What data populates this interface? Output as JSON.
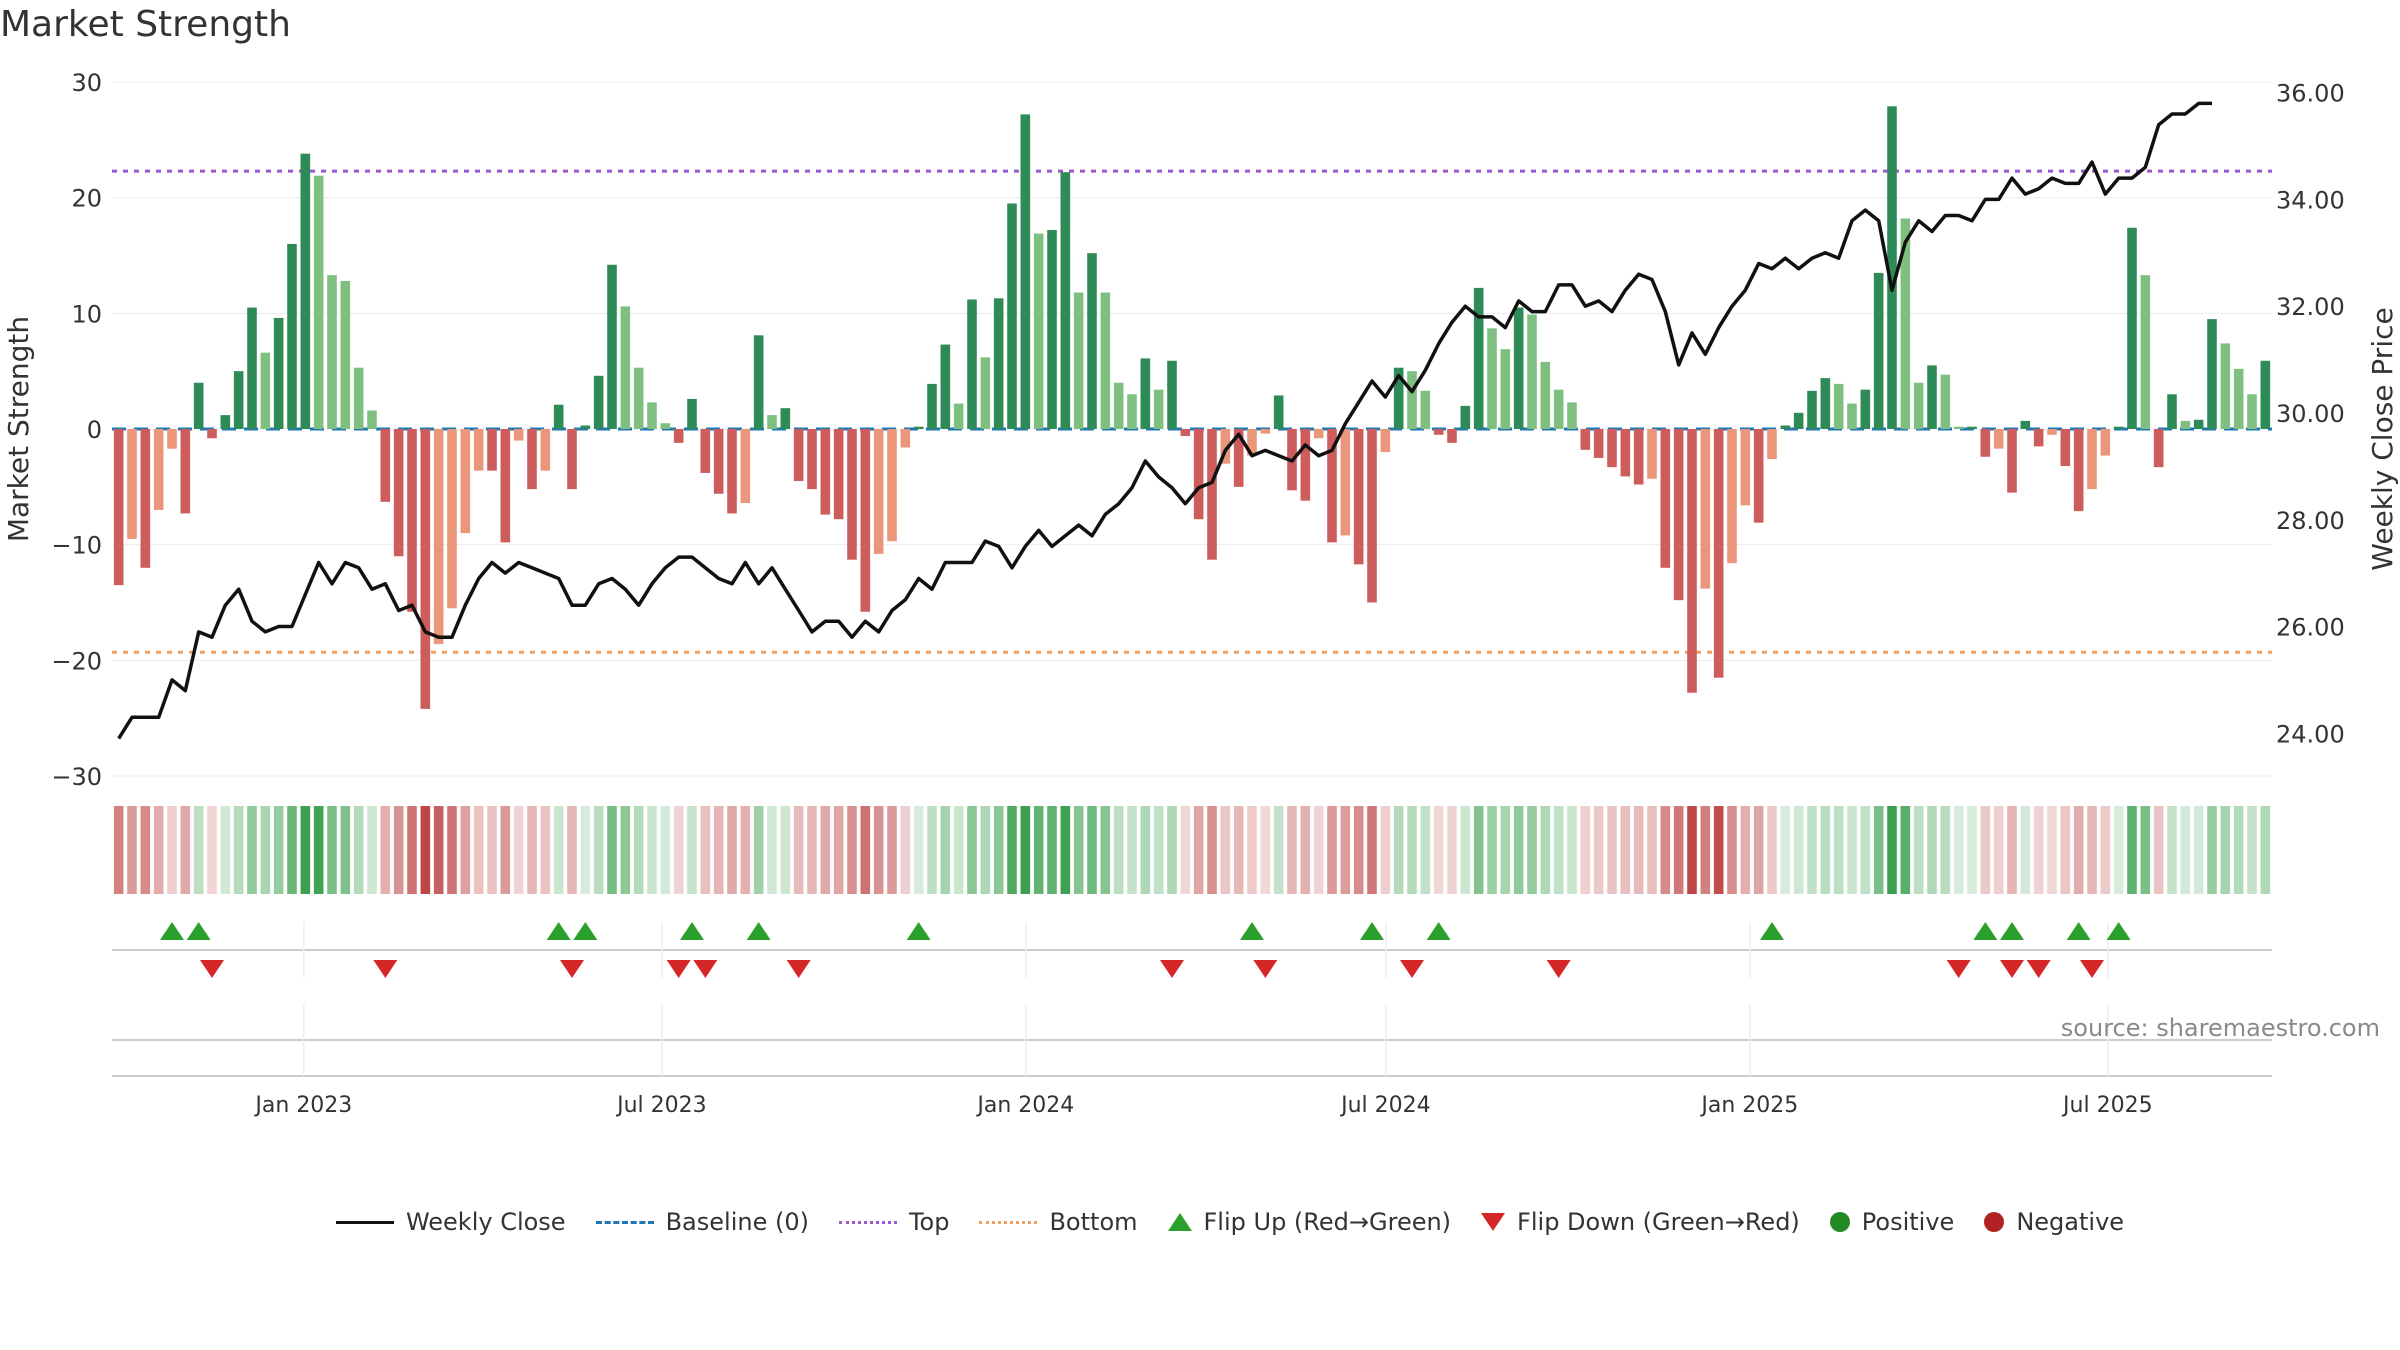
{
  "chart_data": {
    "type": "bar+line",
    "title": "Market Strength",
    "left_axis": {
      "label": "Market Strength",
      "ylim": [
        -30,
        30
      ],
      "ticks": [
        30,
        20,
        10,
        0,
        -10,
        -20,
        -30
      ],
      "tick_labels": [
        "30",
        "20",
        "10",
        "0",
        "−10",
        "−20",
        "−30"
      ]
    },
    "right_axis": {
      "label": "Weekly Close Price",
      "ylim": [
        23.2,
        36.2
      ],
      "ticks": [
        36,
        34,
        32,
        30,
        28,
        26,
        24
      ],
      "tick_labels": [
        "36.00",
        "34.00",
        "32.00",
        "30.00",
        "28.00",
        "26.00",
        "24.00"
      ]
    },
    "x_axis": {
      "date_range": [
        "2022-09-26",
        "2025-09-22"
      ],
      "tick_labels": [
        "Jan 2023",
        "Jul 2023",
        "Jan 2024",
        "Jul 2024",
        "Jan 2025",
        "Jul 2025"
      ],
      "tick_dates": [
        "2023-01-01",
        "2023-07-01",
        "2024-01-01",
        "2024-07-01",
        "2025-01-01",
        "2025-07-01"
      ]
    },
    "reference_lines": {
      "top": 22.3,
      "bottom": -19.3,
      "baseline": 0
    },
    "strength": [
      -13.5,
      -9.5,
      -12,
      -7,
      -1.7,
      -7.3,
      4,
      -0.8,
      1.2,
      5,
      10.5,
      6.6,
      9.6,
      16,
      23.8,
      21.9,
      13.3,
      12.8,
      5.3,
      1.6,
      -6.3,
      -11,
      -15.8,
      -24.2,
      -18.6,
      -15.5,
      -9,
      -3.6,
      -3.6,
      -9.8,
      -1,
      -5.2,
      -3.6,
      2.1,
      -5.2,
      0.3,
      4.6,
      14.2,
      10.6,
      5.3,
      2.3,
      0.5,
      -1.2,
      2.6,
      -3.8,
      -5.6,
      -7.3,
      -6.4,
      8.1,
      1.2,
      1.8,
      -4.5,
      -5.2,
      -7.4,
      -7.8,
      -11.3,
      -15.8,
      -10.8,
      -9.7,
      -1.6,
      0.2,
      3.9,
      7.3,
      2.2,
      11.2,
      6.2,
      11.3,
      19.5,
      27.2,
      16.9,
      17.2,
      22.2,
      11.8,
      15.2,
      11.8,
      4,
      3,
      6.1,
      3.4,
      5.9,
      -0.6,
      -7.8,
      -11.3,
      -3,
      -5,
      -2.3,
      -0.4,
      2.9,
      -5.3,
      -6.2,
      -0.8,
      -9.8,
      -9.2,
      -11.7,
      -15,
      -2,
      5.3,
      5,
      3.3,
      -0.5,
      -1.2,
      2,
      12.2,
      8.7,
      6.9,
      10.5,
      9.9,
      5.8,
      3.4,
      2.3,
      -1.8,
      -2.5,
      -3.3,
      -4.1,
      -4.8,
      -4.3,
      -12,
      -14.8,
      -22.8,
      -13.8,
      -21.5,
      -11.6,
      -6.6,
      -8.1,
      -2.6,
      0.3,
      1.4,
      3.3,
      4.4,
      3.9,
      2.2,
      3.4,
      13.5,
      27.9,
      18.2,
      4,
      5.5,
      4.7,
      0.2,
      0.2,
      -2.4,
      -1.7,
      -5.5,
      0.7,
      -1.5,
      -0.5,
      -3.2,
      -7.1,
      -5.2,
      -2.3,
      0.2,
      17.4,
      13.3,
      -3.3,
      3,
      0.7,
      0.8,
      9.5,
      7.4,
      5.2,
      3,
      5.9
    ],
    "weekly_close": [
      23.9,
      24.3,
      24.3,
      24.3,
      25,
      24.8,
      25.9,
      25.8,
      26.4,
      26.7,
      26.1,
      25.9,
      26,
      26,
      26.6,
      27.2,
      26.8,
      27.2,
      27.1,
      26.7,
      26.8,
      26.3,
      26.4,
      25.9,
      25.8,
      25.8,
      26.4,
      26.9,
      27.2,
      27,
      27.2,
      27.1,
      27,
      26.9,
      26.4,
      26.4,
      26.8,
      26.9,
      26.7,
      26.4,
      26.8,
      27.1,
      27.3,
      27.3,
      27.1,
      26.9,
      26.8,
      27.2,
      26.8,
      27.1,
      26.7,
      26.3,
      25.9,
      26.1,
      26.1,
      25.8,
      26.1,
      25.9,
      26.3,
      26.5,
      26.9,
      26.7,
      27.2,
      27.2,
      27.2,
      27.6,
      27.5,
      27.1,
      27.5,
      27.8,
      27.5,
      27.7,
      27.9,
      27.7,
      28.1,
      28.3,
      28.6,
      29.1,
      28.8,
      28.6,
      28.3,
      28.6,
      28.7,
      29.3,
      29.6,
      29.2,
      29.3,
      29.2,
      29.1,
      29.4,
      29.2,
      29.3,
      29.8,
      30.2,
      30.6,
      30.3,
      30.7,
      30.4,
      30.8,
      31.3,
      31.7,
      32,
      31.8,
      31.8,
      31.6,
      32.1,
      31.9,
      31.9,
      32.4,
      32.4,
      32,
      32.1,
      31.9,
      32.3,
      32.6,
      32.5,
      31.9,
      30.9,
      31.5,
      31.1,
      31.6,
      32,
      32.3,
      32.8,
      32.7,
      32.9,
      32.7,
      32.9,
      33,
      32.9,
      33.6,
      33.8,
      33.6,
      32.3,
      33.2,
      33.6,
      33.4,
      33.7,
      33.7,
      33.6,
      34,
      34,
      34.4,
      34.1,
      34.2,
      34.4,
      34.3,
      34.3,
      34.7,
      34.1,
      34.4,
      34.4,
      34.6,
      35.4,
      35.6,
      35.6,
      35.8,
      35.8
    ],
    "flip_up_weeks": [
      4,
      6,
      33,
      35,
      43,
      48,
      60,
      85,
      94,
      99,
      124,
      140,
      142,
      147,
      150
    ],
    "flip_down_weeks": [
      7,
      20,
      34,
      42,
      44,
      51,
      79,
      86,
      97,
      108,
      138,
      142,
      144,
      148
    ],
    "series": [
      {
        "name": "Weekly Close",
        "type": "line",
        "color": "#111111"
      },
      {
        "name": "Market Strength",
        "type": "bar",
        "colors": {
          "strong_pos": "#2e8b57",
          "weak_pos": "#7fbf7f",
          "strong_neg": "#cd5c5c",
          "weak_neg": "#e9967a"
        }
      }
    ],
    "legend": {
      "position": "bottom-center",
      "entries": [
        "Weekly Close",
        "Baseline (0)",
        "Top",
        "Bottom",
        "Flip Up (Red→Green)",
        "Flip Down (Green→Red)",
        "Positive",
        "Negative"
      ]
    },
    "source": "source: sharemaestro.com"
  },
  "colors": {
    "flip_up": "#2ca02c",
    "flip_down": "#d62728",
    "positive": "#228b22",
    "negative": "#b22222",
    "top_line": "#9b59d0",
    "bottom_line": "#f0a060",
    "baseline": "#1f77b4"
  }
}
